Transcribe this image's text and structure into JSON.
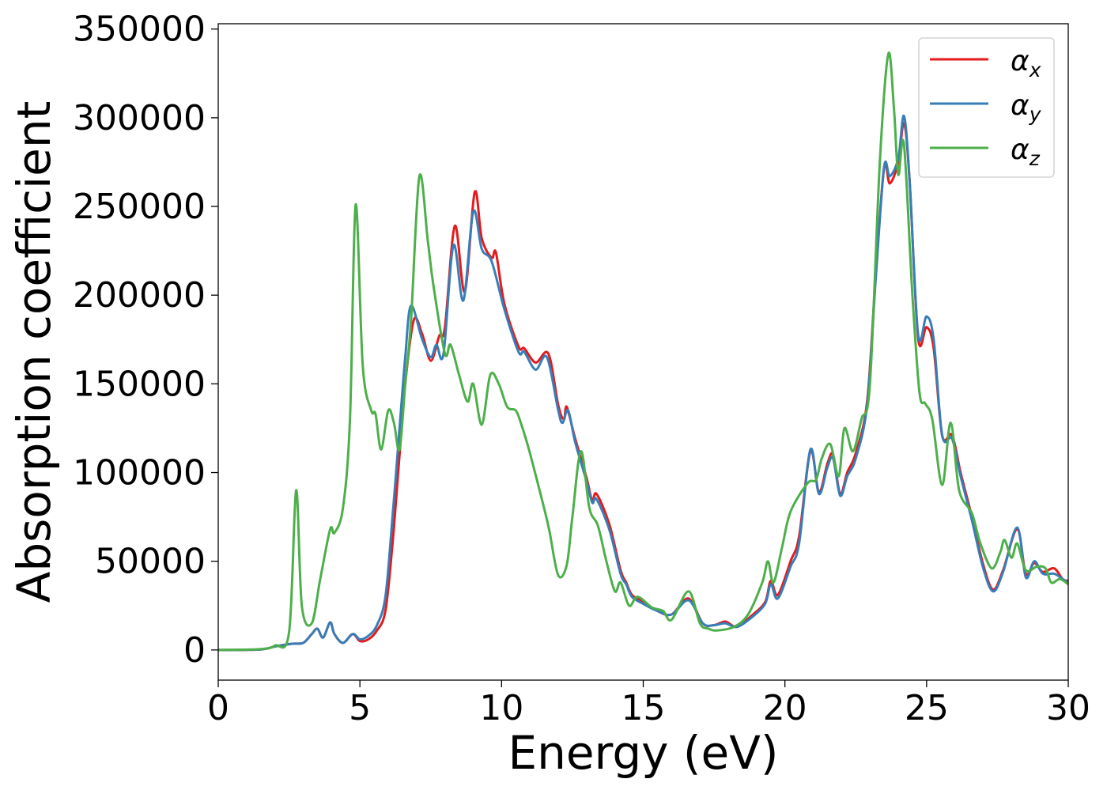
{
  "chart_data": {
    "type": "line",
    "title": "",
    "xlabel": "Energy (eV)",
    "ylabel": "Absorption coefficient",
    "xlim": [
      0,
      30
    ],
    "ylim": [
      -17000,
      353000
    ],
    "xticks": [
      0,
      5,
      10,
      15,
      20,
      25,
      30
    ],
    "yticks": [
      0,
      50000,
      100000,
      150000,
      200000,
      250000,
      300000,
      350000
    ],
    "grid": false,
    "legend": {
      "placement": "top-right"
    },
    "series": [
      {
        "name": "α_x",
        "symbol": "α",
        "subscript": "x",
        "color": "#e41a1c",
        "points": [
          [
            0,
            0
          ],
          [
            1.5,
            300
          ],
          [
            2,
            2000
          ],
          [
            2.6,
            3500
          ],
          [
            3,
            4000
          ],
          [
            3.3,
            9000
          ],
          [
            3.5,
            12000
          ],
          [
            3.7,
            7000
          ],
          [
            3.95,
            15500
          ],
          [
            4.1,
            9000
          ],
          [
            4.4,
            4000
          ],
          [
            4.75,
            9000
          ],
          [
            5,
            5000
          ],
          [
            5.3,
            6000
          ],
          [
            5.6,
            11000
          ],
          [
            5.9,
            22000
          ],
          [
            6.15,
            60000
          ],
          [
            6.4,
            110000
          ],
          [
            6.6,
            150000
          ],
          [
            6.9,
            186000
          ],
          [
            7.2,
            178000
          ],
          [
            7.5,
            163000
          ],
          [
            7.8,
            177000
          ],
          [
            8,
            182000
          ],
          [
            8.35,
            239000
          ],
          [
            8.7,
            202000
          ],
          [
            9.05,
            258000
          ],
          [
            9.3,
            232000
          ],
          [
            9.65,
            221000
          ],
          [
            9.8,
            224000
          ],
          [
            10.1,
            195000
          ],
          [
            10.6,
            171000
          ],
          [
            10.8,
            170000
          ],
          [
            11.2,
            162000
          ],
          [
            11.65,
            167000
          ],
          [
            12,
            138000
          ],
          [
            12.2,
            130000
          ],
          [
            12.3,
            137000
          ],
          [
            12.6,
            119000
          ],
          [
            13,
            97000
          ],
          [
            13.2,
            84000
          ],
          [
            13.35,
            88000
          ],
          [
            13.8,
            71000
          ],
          [
            14.2,
            45000
          ],
          [
            14.4,
            38000
          ],
          [
            14.6,
            31000
          ],
          [
            15,
            27000
          ],
          [
            15.5,
            22000
          ],
          [
            16,
            20000
          ],
          [
            16.6,
            29000
          ],
          [
            17.1,
            15000
          ],
          [
            17.5,
            14000
          ],
          [
            17.9,
            16000
          ],
          [
            18.3,
            13000
          ],
          [
            18.8,
            19000
          ],
          [
            19.3,
            27000
          ],
          [
            19.5,
            39000
          ],
          [
            19.75,
            31000
          ],
          [
            20.2,
            50000
          ],
          [
            20.5,
            64000
          ],
          [
            20.9,
            112000
          ],
          [
            21.2,
            89000
          ],
          [
            21.5,
            105000
          ],
          [
            21.7,
            110000
          ],
          [
            21.95,
            88000
          ],
          [
            22.2,
            100000
          ],
          [
            22.5,
            111000
          ],
          [
            22.9,
            140000
          ],
          [
            23.2,
            210000
          ],
          [
            23.5,
            272000
          ],
          [
            23.7,
            263000
          ],
          [
            24,
            275000
          ],
          [
            24.2,
            297000
          ],
          [
            24.4,
            265000
          ],
          [
            24.7,
            176000
          ],
          [
            25,
            182000
          ],
          [
            25.25,
            170000
          ],
          [
            25.55,
            121000
          ],
          [
            25.9,
            121000
          ],
          [
            26.2,
            100000
          ],
          [
            26.6,
            75000
          ],
          [
            27,
            48000
          ],
          [
            27.35,
            34000
          ],
          [
            27.7,
            45000
          ],
          [
            28.2,
            68000
          ],
          [
            28.5,
            43000
          ],
          [
            28.8,
            49000
          ],
          [
            29.1,
            44000
          ],
          [
            29.5,
            46000
          ],
          [
            29.8,
            40000
          ],
          [
            30,
            39000
          ]
        ]
      },
      {
        "name": "α_y",
        "symbol": "α",
        "subscript": "y",
        "color": "#377eb8",
        "points": [
          [
            0,
            0
          ],
          [
            1.5,
            300
          ],
          [
            2,
            2000
          ],
          [
            2.6,
            3500
          ],
          [
            3,
            4000
          ],
          [
            3.3,
            9000
          ],
          [
            3.5,
            12000
          ],
          [
            3.7,
            7000
          ],
          [
            3.95,
            15500
          ],
          [
            4.1,
            9000
          ],
          [
            4.4,
            4000
          ],
          [
            4.75,
            9000
          ],
          [
            5,
            6000
          ],
          [
            5.3,
            8000
          ],
          [
            5.6,
            14000
          ],
          [
            5.9,
            30000
          ],
          [
            6.15,
            75000
          ],
          [
            6.4,
            125000
          ],
          [
            6.6,
            165000
          ],
          [
            6.8,
            194000
          ],
          [
            7.2,
            175000
          ],
          [
            7.5,
            165000
          ],
          [
            7.7,
            172000
          ],
          [
            7.95,
            167000
          ],
          [
            8.3,
            228000
          ],
          [
            8.65,
            197000
          ],
          [
            9,
            247000
          ],
          [
            9.3,
            226000
          ],
          [
            9.65,
            219000
          ],
          [
            10.1,
            192000
          ],
          [
            10.6,
            168000
          ],
          [
            10.8,
            168000
          ],
          [
            11.2,
            158000
          ],
          [
            11.6,
            165000
          ],
          [
            12,
            135000
          ],
          [
            12.15,
            128000
          ],
          [
            12.35,
            135000
          ],
          [
            12.6,
            117000
          ],
          [
            13,
            95000
          ],
          [
            13.2,
            83000
          ],
          [
            13.35,
            85000
          ],
          [
            13.8,
            68000
          ],
          [
            14.2,
            43000
          ],
          [
            14.4,
            37000
          ],
          [
            14.6,
            30000
          ],
          [
            15,
            26000
          ],
          [
            15.5,
            22000
          ],
          [
            16,
            20000
          ],
          [
            16.6,
            28000
          ],
          [
            17.1,
            15000
          ],
          [
            17.5,
            14000
          ],
          [
            17.9,
            15000
          ],
          [
            18.3,
            13000
          ],
          [
            18.8,
            18000
          ],
          [
            19.3,
            26000
          ],
          [
            19.5,
            37000
          ],
          [
            19.75,
            29000
          ],
          [
            20.2,
            47000
          ],
          [
            20.5,
            60000
          ],
          [
            20.9,
            113000
          ],
          [
            21.2,
            88000
          ],
          [
            21.5,
            103000
          ],
          [
            21.7,
            108000
          ],
          [
            21.95,
            87000
          ],
          [
            22.2,
            98000
          ],
          [
            22.5,
            108000
          ],
          [
            22.9,
            138000
          ],
          [
            23.2,
            208000
          ],
          [
            23.5,
            272000
          ],
          [
            23.7,
            267000
          ],
          [
            24,
            277000
          ],
          [
            24.2,
            301000
          ],
          [
            24.4,
            265000
          ],
          [
            24.7,
            178000
          ],
          [
            25,
            188000
          ],
          [
            25.25,
            175000
          ],
          [
            25.55,
            121000
          ],
          [
            25.9,
            119000
          ],
          [
            26.2,
            98000
          ],
          [
            26.6,
            73000
          ],
          [
            27,
            46000
          ],
          [
            27.35,
            33000
          ],
          [
            27.7,
            44000
          ],
          [
            28.2,
            69000
          ],
          [
            28.5,
            41000
          ],
          [
            28.8,
            50000
          ],
          [
            29.1,
            43000
          ],
          [
            29.5,
            43000
          ],
          [
            29.8,
            40000
          ],
          [
            30,
            38000
          ]
        ]
      },
      {
        "name": "α_z",
        "symbol": "α",
        "subscript": "z",
        "color": "#4daf4a",
        "points": [
          [
            0,
            0
          ],
          [
            1.5,
            500
          ],
          [
            2,
            2500
          ],
          [
            2.5,
            10000
          ],
          [
            2.75,
            90000
          ],
          [
            2.95,
            25000
          ],
          [
            3.3,
            15000
          ],
          [
            3.6,
            40000
          ],
          [
            3.95,
            68000
          ],
          [
            4.1,
            66000
          ],
          [
            4.4,
            80000
          ],
          [
            4.65,
            130000
          ],
          [
            4.85,
            251000
          ],
          [
            5.1,
            160000
          ],
          [
            5.4,
            135000
          ],
          [
            5.55,
            133000
          ],
          [
            5.75,
            113000
          ],
          [
            6,
            135000
          ],
          [
            6.2,
            128000
          ],
          [
            6.4,
            113000
          ],
          [
            6.6,
            150000
          ],
          [
            6.8,
            185000
          ],
          [
            7.1,
            267000
          ],
          [
            7.4,
            230000
          ],
          [
            7.6,
            205000
          ],
          [
            8,
            167000
          ],
          [
            8.2,
            172000
          ],
          [
            8.5,
            155000
          ],
          [
            8.8,
            140000
          ],
          [
            9,
            150000
          ],
          [
            9.3,
            127000
          ],
          [
            9.6,
            155000
          ],
          [
            9.9,
            150000
          ],
          [
            10.2,
            137000
          ],
          [
            10.5,
            135000
          ],
          [
            10.7,
            127000
          ],
          [
            11,
            111000
          ],
          [
            11.5,
            80000
          ],
          [
            11.7,
            66000
          ],
          [
            12,
            42000
          ],
          [
            12.3,
            48000
          ],
          [
            12.5,
            75000
          ],
          [
            12.8,
            112000
          ],
          [
            13.1,
            80000
          ],
          [
            13.4,
            70000
          ],
          [
            13.7,
            50000
          ],
          [
            14,
            33000
          ],
          [
            14.2,
            38000
          ],
          [
            14.5,
            25000
          ],
          [
            14.8,
            30000
          ],
          [
            15.3,
            24000
          ],
          [
            15.7,
            22000
          ],
          [
            16,
            17000
          ],
          [
            16.6,
            33000
          ],
          [
            17,
            15000
          ],
          [
            17.3,
            12000
          ],
          [
            17.6,
            11000
          ],
          [
            18.2,
            13000
          ],
          [
            18.7,
            20000
          ],
          [
            19.2,
            38000
          ],
          [
            19.4,
            50000
          ],
          [
            19.6,
            38000
          ],
          [
            19.9,
            58000
          ],
          [
            20.2,
            78000
          ],
          [
            20.8,
            94000
          ],
          [
            21.1,
            96000
          ],
          [
            21.3,
            108000
          ],
          [
            21.6,
            116000
          ],
          [
            21.9,
            98000
          ],
          [
            22.1,
            125000
          ],
          [
            22.4,
            112000
          ],
          [
            22.7,
            130000
          ],
          [
            23,
            150000
          ],
          [
            23.35,
            275000
          ],
          [
            23.65,
            336000
          ],
          [
            23.85,
            305000
          ],
          [
            24,
            268000
          ],
          [
            24.2,
            285000
          ],
          [
            24.5,
            200000
          ],
          [
            24.75,
            145000
          ],
          [
            24.95,
            139000
          ],
          [
            25.2,
            130000
          ],
          [
            25.55,
            93000
          ],
          [
            25.85,
            128000
          ],
          [
            26.15,
            90000
          ],
          [
            26.6,
            77000
          ],
          [
            26.9,
            60000
          ],
          [
            27.3,
            46000
          ],
          [
            27.6,
            55000
          ],
          [
            27.75,
            62000
          ],
          [
            28,
            52000
          ],
          [
            28.2,
            60000
          ],
          [
            28.5,
            45000
          ],
          [
            28.9,
            47000
          ],
          [
            29.2,
            46000
          ],
          [
            29.4,
            38000
          ],
          [
            29.7,
            40000
          ],
          [
            30,
            37000
          ]
        ]
      }
    ]
  }
}
